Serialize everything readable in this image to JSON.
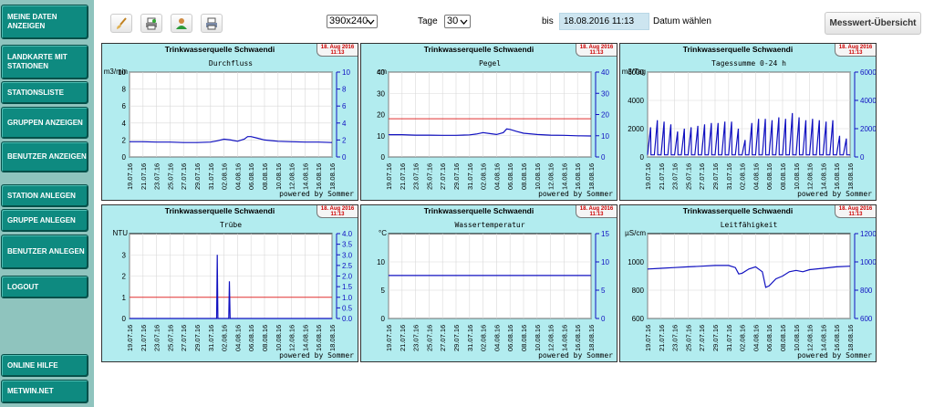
{
  "sidebar": {
    "items": [
      {
        "label": "MEINE DATEN ANZEIGEN"
      },
      {
        "label": "LANDKARTE MIT STATIONEN"
      },
      {
        "label": "STATIONSLISTE"
      },
      {
        "label": "GRUPPEN ANZEIGEN"
      },
      {
        "label": "BENUTZER ANZEIGEN"
      },
      {
        "label": "STATION ANLEGEN"
      },
      {
        "label": "GRUPPE ANLEGEN"
      },
      {
        "label": "BENUTZER ANLEGEN"
      },
      {
        "label": "LOGOUT"
      },
      {
        "label": "ONLINE HILFE"
      },
      {
        "label": "METWIN.NET"
      }
    ]
  },
  "toolbar": {
    "icons": [
      "brush-icon",
      "printer-pdf-icon",
      "user-icon",
      "printer-icon"
    ],
    "size_select": "390x240",
    "days_label": "Tage",
    "days_select": "30",
    "bis_label": "bis",
    "date_value": "18.08.2016 11:13",
    "date_choose_label": "Datum wählen",
    "overview_button": "Messwert-Übersicht"
  },
  "common": {
    "station": "Trinkwasserquelle Schwaendi",
    "date_line1": "18. Aug 2016",
    "date_line2": "11:13",
    "powered": "powered by Sommer",
    "x_ticks": [
      "19.07.16",
      "21.07.16",
      "23.07.16",
      "25.07.16",
      "27.07.16",
      "29.07.16",
      "31.07.16",
      "02.08.16",
      "04.08.16",
      "06.08.16",
      "08.08.16",
      "10.08.16",
      "12.08.16",
      "14.08.16",
      "16.08.16",
      "18.08.16"
    ]
  },
  "colors": {
    "line": "#1010c0",
    "limit": "#e03030",
    "panel_bg": "#b2ecef",
    "sidebar_btn": "#0e8a80"
  },
  "chart_data": [
    {
      "type": "line",
      "title": "Trinkwasserquelle Schwaendi",
      "subtitle": "Durchfluss",
      "ylabel": "m3/min",
      "ylim": [
        0,
        10
      ],
      "y_ticks": [
        0,
        2,
        4,
        6,
        8,
        10
      ],
      "right_ticks": [
        "0",
        "2",
        "4",
        "6",
        "8",
        "10"
      ],
      "x": [
        0,
        2,
        4,
        6,
        8,
        10,
        12,
        13,
        14,
        15,
        16,
        17,
        17.5,
        18,
        19,
        20,
        22,
        24,
        26,
        28,
        30
      ],
      "values": [
        1.8,
        1.8,
        1.75,
        1.75,
        1.7,
        1.7,
        1.75,
        1.9,
        2.1,
        2.0,
        1.85,
        2.1,
        2.4,
        2.4,
        2.2,
        2.0,
        1.85,
        1.8,
        1.75,
        1.75,
        1.7
      ]
    },
    {
      "type": "line",
      "title": "Trinkwasserquelle Schwaendi",
      "subtitle": "Pegel",
      "ylabel": "cm",
      "ylim": [
        0,
        40
      ],
      "y_ticks": [
        0,
        10,
        20,
        30,
        40
      ],
      "right_ticks": [
        "0",
        "10",
        "20",
        "30",
        "40"
      ],
      "limit": 18,
      "x": [
        0,
        2,
        4,
        6,
        8,
        10,
        12,
        13,
        14,
        15,
        16,
        17,
        17.5,
        18,
        19,
        20,
        22,
        24,
        26,
        28,
        30
      ],
      "values": [
        10.5,
        10.5,
        10.3,
        10.3,
        10.2,
        10.2,
        10.4,
        10.8,
        11.5,
        11.0,
        10.6,
        11.5,
        13.2,
        13.0,
        12.0,
        11.2,
        10.6,
        10.3,
        10.2,
        10.0,
        9.9
      ]
    },
    {
      "type": "line",
      "title": "Trinkwasserquelle Schwaendi",
      "subtitle": "Tagessumme 0-24 h",
      "ylabel": "m3/Tag",
      "ylim": [
        0,
        6000
      ],
      "y_ticks": [
        0,
        2000,
        4000,
        6000
      ],
      "right_ticks": [
        "0",
        "2000",
        "4000",
        "6000"
      ],
      "pattern": "sawtooth",
      "peaks": [
        2100,
        2600,
        2500,
        2300,
        1800,
        2000,
        2100,
        2200,
        2300,
        2400,
        2400,
        2500,
        2500,
        2000,
        1200,
        2400,
        2700,
        2700,
        2600,
        2800,
        2700,
        3100,
        2800,
        2600,
        2700,
        2600,
        2500,
        2600,
        1500,
        1300
      ]
    },
    {
      "type": "line",
      "title": "Trinkwasserquelle Schwaendi",
      "subtitle": "Trübe",
      "ylabel": "NTU",
      "ylim": [
        0,
        4
      ],
      "y_ticks": [
        0,
        1,
        2,
        3
      ],
      "right_ticks": [
        "0.0",
        "0.5",
        "1.0",
        "1.5",
        "2.0",
        "2.5",
        "3.0",
        "3.5",
        "4.0"
      ],
      "right_ylim": [
        0,
        4
      ],
      "limit": 1,
      "x": [
        0,
        12.9,
        13.0,
        13.1,
        14.7,
        14.8,
        14.9,
        30
      ],
      "values": [
        0,
        0,
        3.0,
        0,
        0,
        1.75,
        0,
        0
      ]
    },
    {
      "type": "line",
      "title": "Trinkwasserquelle Schwaendi",
      "subtitle": "Wassertemperatur",
      "ylabel": "°C",
      "ylim": [
        0,
        15
      ],
      "y_ticks": [
        0,
        5,
        10
      ],
      "right_ticks": [
        "0",
        "5",
        "10",
        "15"
      ],
      "x": [
        0,
        5,
        10,
        15,
        20,
        25,
        30
      ],
      "values": [
        7.6,
        7.6,
        7.6,
        7.6,
        7.6,
        7.6,
        7.6
      ]
    },
    {
      "type": "line",
      "title": "Trinkwasserquelle Schwaendi",
      "subtitle": "Leitfähigkeit",
      "ylabel": "µS/cm",
      "ylim": [
        600,
        1200
      ],
      "y_ticks": [
        600,
        800,
        1000
      ],
      "right_ticks": [
        "600",
        "800",
        "1000",
        "1200"
      ],
      "x": [
        0,
        2,
        4,
        6,
        8,
        10,
        12,
        13,
        13.5,
        14,
        15,
        16,
        17,
        17.5,
        18,
        19,
        20,
        21,
        22,
        23,
        24,
        26,
        28,
        30
      ],
      "values": [
        950,
        955,
        960,
        965,
        970,
        975,
        975,
        960,
        915,
        920,
        950,
        965,
        930,
        820,
        830,
        880,
        900,
        930,
        940,
        930,
        945,
        955,
        965,
        970
      ]
    }
  ]
}
